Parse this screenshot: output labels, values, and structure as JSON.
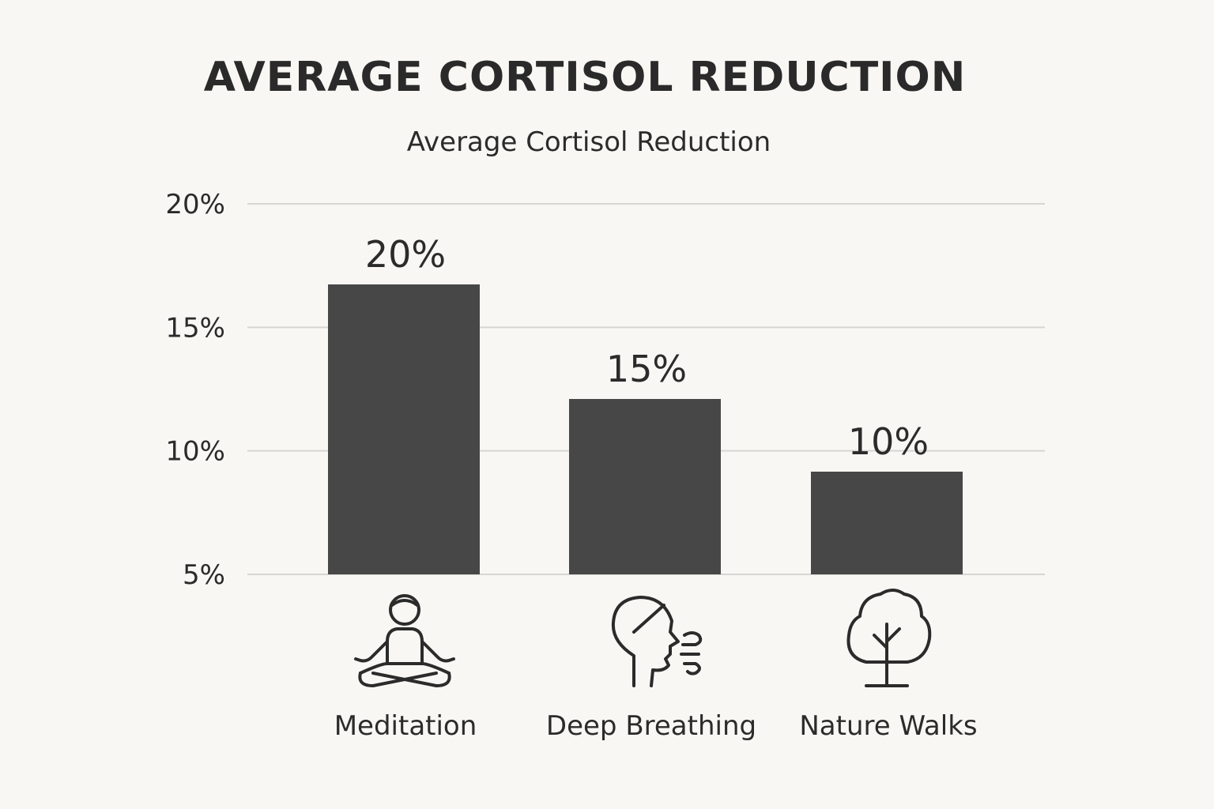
{
  "chart_data": {
    "type": "bar",
    "title": "AVERAGE CORTISOL REDUCTION",
    "subtitle": "Average Cortisol Reduction",
    "categories": [
      "Meditation",
      "Deep Breathing",
      "Nature Walks"
    ],
    "values": [
      20,
      15,
      10
    ],
    "data_labels": [
      "20%",
      "15%",
      "10%"
    ],
    "icons": [
      "meditation-icon",
      "breathing-head-icon",
      "tree-icon"
    ],
    "y_ticks": [
      {
        "value": 5,
        "label": "5%"
      },
      {
        "value": 10,
        "label": "10%"
      },
      {
        "value": 15,
        "label": "15%"
      },
      {
        "value": 20,
        "label": "20%"
      }
    ],
    "ylim": [
      5,
      20
    ],
    "grid": true,
    "xlabel": "",
    "ylabel": "",
    "colors": {
      "bar": "#474747",
      "grid": "#d6d6d2",
      "text": "#2b2b2b",
      "background": "#f8f7f3"
    }
  }
}
